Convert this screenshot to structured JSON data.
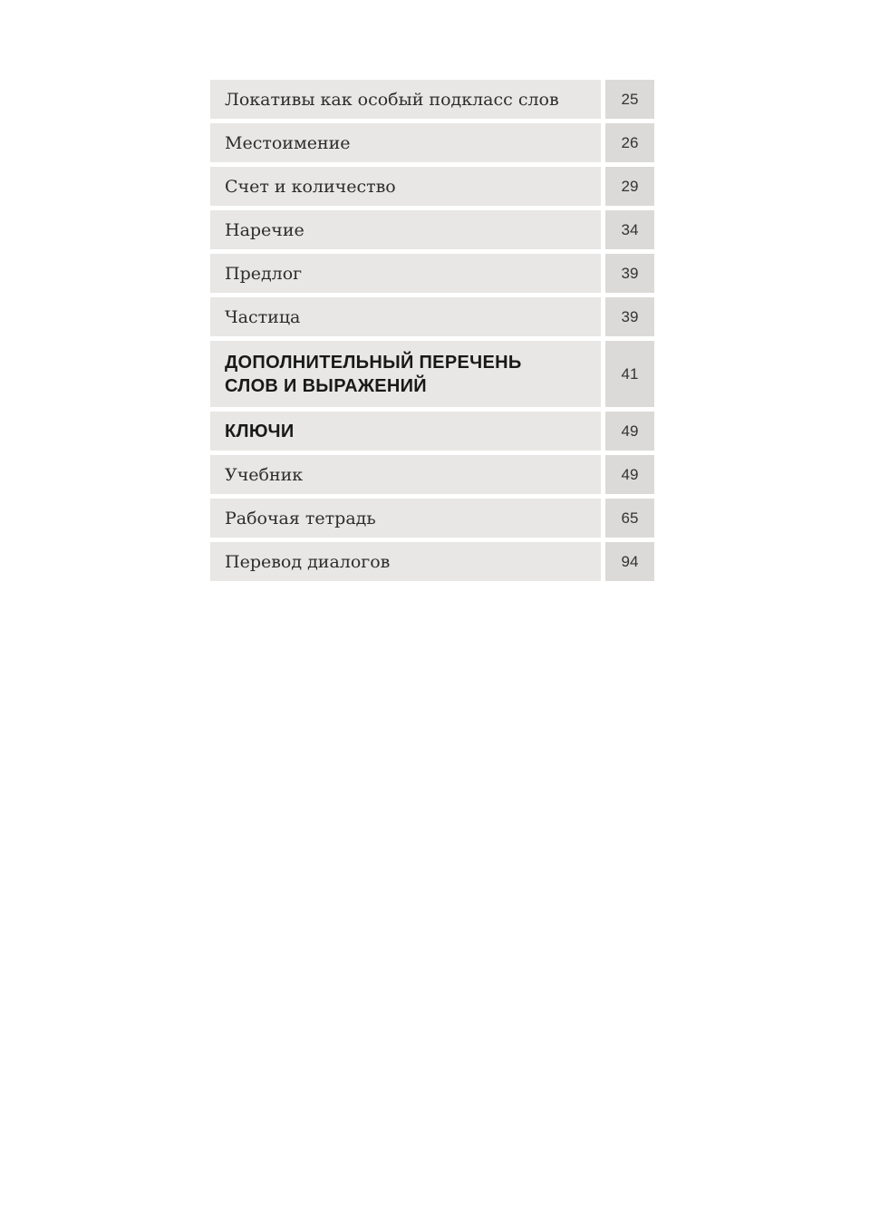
{
  "document": {
    "type": "book-table-of-contents",
    "language": "ru"
  },
  "theme": {
    "page_background": "#ffffff",
    "row_background": "#e8e7e5",
    "page_number_background": "#dbdad8",
    "entry_text_color": "#2d2d2d",
    "heading_text_color": "#191919",
    "page_number_color": "#333333"
  },
  "toc": {
    "rows": [
      {
        "style": "entry",
        "label": "Локативы как особый подкласс слов",
        "page": "25"
      },
      {
        "style": "entry",
        "label": "Местоимение",
        "page": "26"
      },
      {
        "style": "entry",
        "label": "Счет и количество",
        "page": "29"
      },
      {
        "style": "entry",
        "label": "Наречие",
        "page": "34"
      },
      {
        "style": "entry",
        "label": "Предлог",
        "page": "39"
      },
      {
        "style": "entry",
        "label": "Частица",
        "page": "39"
      },
      {
        "style": "heading",
        "label": "ДОПОЛНИТЕЛЬНЫЙ ПЕРЕЧЕНЬ СЛОВ И ВЫРАЖЕНИЙ",
        "lines": [
          "ДОПОЛНИТЕЛЬНЫЙ ПЕРЕЧЕНЬ",
          "СЛОВ И ВЫРАЖЕНИЙ"
        ],
        "page": "41"
      },
      {
        "style": "heading",
        "label": "КЛЮЧИ",
        "page": "49"
      },
      {
        "style": "entry",
        "label": "Учебник",
        "page": "49"
      },
      {
        "style": "entry",
        "label": "Рабочая тетрадь",
        "page": "65"
      },
      {
        "style": "entry",
        "label": "Перевод диалогов",
        "page": "94"
      }
    ]
  }
}
